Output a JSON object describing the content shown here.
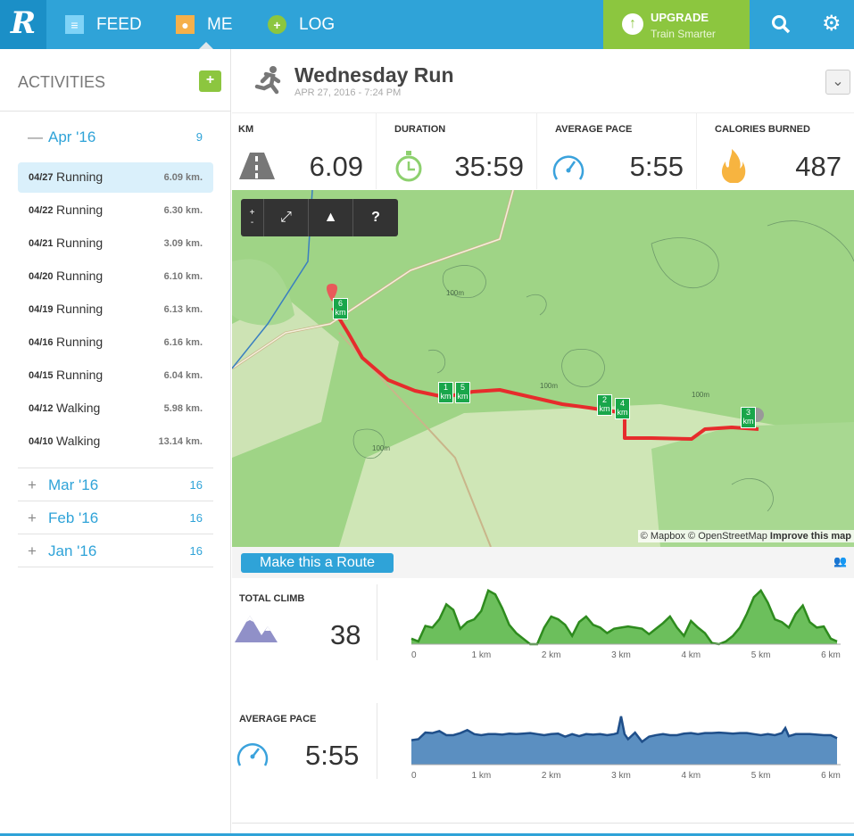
{
  "nav": {
    "logo": "R",
    "items": [
      {
        "label": "FEED",
        "icon": "feed-icon"
      },
      {
        "label": "ME",
        "icon": "profile-icon"
      },
      {
        "label": "LOG",
        "icon": "plus-circle-icon"
      }
    ],
    "upgrade_title": "UPGRADE",
    "upgrade_sub": "Train Smarter"
  },
  "sidebar": {
    "title": "ACTIVITIES",
    "months": [
      {
        "sign": "—",
        "name": "Apr '16",
        "count": "9",
        "expanded": true
      },
      {
        "sign": "+",
        "name": "Mar '16",
        "count": "16"
      },
      {
        "sign": "+",
        "name": "Feb '16",
        "count": "16"
      },
      {
        "sign": "+",
        "name": "Jan '16",
        "count": "16"
      }
    ],
    "items": [
      {
        "date": "04/27",
        "type": "Running",
        "km": "6.09 km.",
        "selected": true
      },
      {
        "date": "04/22",
        "type": "Running",
        "km": "6.30 km."
      },
      {
        "date": "04/21",
        "type": "Running",
        "km": "3.09 km."
      },
      {
        "date": "04/20",
        "type": "Running",
        "km": "6.10 km."
      },
      {
        "date": "04/19",
        "type": "Running",
        "km": "6.13 km."
      },
      {
        "date": "04/16",
        "type": "Running",
        "km": "6.16 km."
      },
      {
        "date": "04/15",
        "type": "Running",
        "km": "6.04 km."
      },
      {
        "date": "04/12",
        "type": "Walking",
        "km": "5.98 km."
      },
      {
        "date": "04/10",
        "type": "Walking",
        "km": "13.14 km."
      }
    ]
  },
  "activity": {
    "title": "Wednesday Run",
    "date": "APR 27, 2016 - 7:24 PM"
  },
  "stats": [
    {
      "label": "KM",
      "value": "6.09"
    },
    {
      "label": "DURATION",
      "value": "35:59"
    },
    {
      "label": "AVERAGE PACE",
      "value": "5:55"
    },
    {
      "label": "CALORIES BURNED",
      "value": "487"
    }
  ],
  "map": {
    "controls": {
      "zoom_in": "+",
      "zoom_out": "-",
      "help": "?"
    },
    "contour": "100m",
    "attribution": {
      "mapbox": "© Mapbox",
      "osm": "© OpenStreetMap",
      "improve": "Improve this map"
    },
    "markers": [
      "1\nkm",
      "2\nkm",
      "3\nkm",
      "4\nkm",
      "5\nkm",
      "6\nkm"
    ]
  },
  "route_button": "Make this a Route",
  "profiles": {
    "climb_label": "TOTAL CLIMB",
    "climb_value": "38",
    "pace_label": "AVERAGE PACE",
    "pace_value": "5:55"
  },
  "chart_data": [
    {
      "type": "area",
      "title": "TOTAL CLIMB",
      "x_unit": "km",
      "xlim": [
        0,
        6.09
      ],
      "x_ticks": [
        "0",
        "1 km",
        "2 km",
        "3 km",
        "4 km",
        "5 km",
        "6 km"
      ],
      "color": "#2e8b1e",
      "fill": "#6cbf5c",
      "x": [
        0,
        0.1,
        0.2,
        0.3,
        0.4,
        0.5,
        0.6,
        0.7,
        0.8,
        0.9,
        1.0,
        1.1,
        1.2,
        1.3,
        1.4,
        1.5,
        1.6,
        1.7,
        1.8,
        1.9,
        2.0,
        2.1,
        2.2,
        2.3,
        2.4,
        2.5,
        2.6,
        2.7,
        2.8,
        2.9,
        3.0,
        3.1,
        3.2,
        3.3,
        3.4,
        3.5,
        3.6,
        3.7,
        3.8,
        3.9,
        4.0,
        4.1,
        4.2,
        4.3,
        4.4,
        4.5,
        4.6,
        4.7,
        4.8,
        4.9,
        5.0,
        5.1,
        5.2,
        5.3,
        5.4,
        5.5,
        5.6,
        5.7,
        5.8,
        5.9,
        6.0,
        6.09
      ],
      "y_relative": [
        0.1,
        0.05,
        0.33,
        0.3,
        0.45,
        0.72,
        0.62,
        0.28,
        0.4,
        0.45,
        0.6,
        0.97,
        0.9,
        0.65,
        0.35,
        0.2,
        0.1,
        0,
        0,
        0.3,
        0.5,
        0.45,
        0.35,
        0.15,
        0.4,
        0.5,
        0.35,
        0.3,
        0.2,
        0.28,
        0.3,
        0.32,
        0.3,
        0.28,
        0.18,
        0.28,
        0.38,
        0.5,
        0.3,
        0.15,
        0.42,
        0.3,
        0.2,
        0.02,
        0,
        0.05,
        0.15,
        0.3,
        0.55,
        0.85,
        0.97,
        0.75,
        0.45,
        0.4,
        0.3,
        0.55,
        0.7,
        0.4,
        0.3,
        0.32,
        0.1,
        0.05
      ]
    },
    {
      "type": "area",
      "title": "AVERAGE PACE",
      "x_unit": "km",
      "xlim": [
        0,
        6.09
      ],
      "x_ticks": [
        "0",
        "1 km",
        "2 km",
        "3 km",
        "4 km",
        "5 km",
        "6 km"
      ],
      "color": "#1f4f8a",
      "fill": "#5b8fc1",
      "x": [
        0,
        0.1,
        0.2,
        0.3,
        0.4,
        0.5,
        0.6,
        0.7,
        0.8,
        0.9,
        1.0,
        1.1,
        1.2,
        1.3,
        1.4,
        1.5,
        1.6,
        1.7,
        1.8,
        1.9,
        2.0,
        2.1,
        2.2,
        2.3,
        2.4,
        2.5,
        2.6,
        2.7,
        2.8,
        2.9,
        2.95,
        3.0,
        3.05,
        3.1,
        3.2,
        3.3,
        3.4,
        3.5,
        3.6,
        3.7,
        3.8,
        3.9,
        4.0,
        4.1,
        4.2,
        4.3,
        4.4,
        4.5,
        4.6,
        4.7,
        4.8,
        4.9,
        5.0,
        5.1,
        5.2,
        5.3,
        5.35,
        5.4,
        5.5,
        5.6,
        5.7,
        5.8,
        5.9,
        6.0,
        6.09
      ],
      "y_relative": [
        0.48,
        0.5,
        0.63,
        0.62,
        0.66,
        0.58,
        0.58,
        0.62,
        0.68,
        0.6,
        0.58,
        0.6,
        0.6,
        0.59,
        0.61,
        0.6,
        0.61,
        0.62,
        0.6,
        0.58,
        0.6,
        0.61,
        0.55,
        0.6,
        0.56,
        0.6,
        0.59,
        0.6,
        0.58,
        0.6,
        0.62,
        0.95,
        0.6,
        0.5,
        0.63,
        0.45,
        0.55,
        0.58,
        0.6,
        0.58,
        0.58,
        0.61,
        0.62,
        0.6,
        0.62,
        0.62,
        0.63,
        0.62,
        0.61,
        0.62,
        0.62,
        0.6,
        0.58,
        0.6,
        0.58,
        0.62,
        0.72,
        0.56,
        0.6,
        0.6,
        0.6,
        0.59,
        0.58,
        0.58,
        0.52
      ]
    }
  ]
}
